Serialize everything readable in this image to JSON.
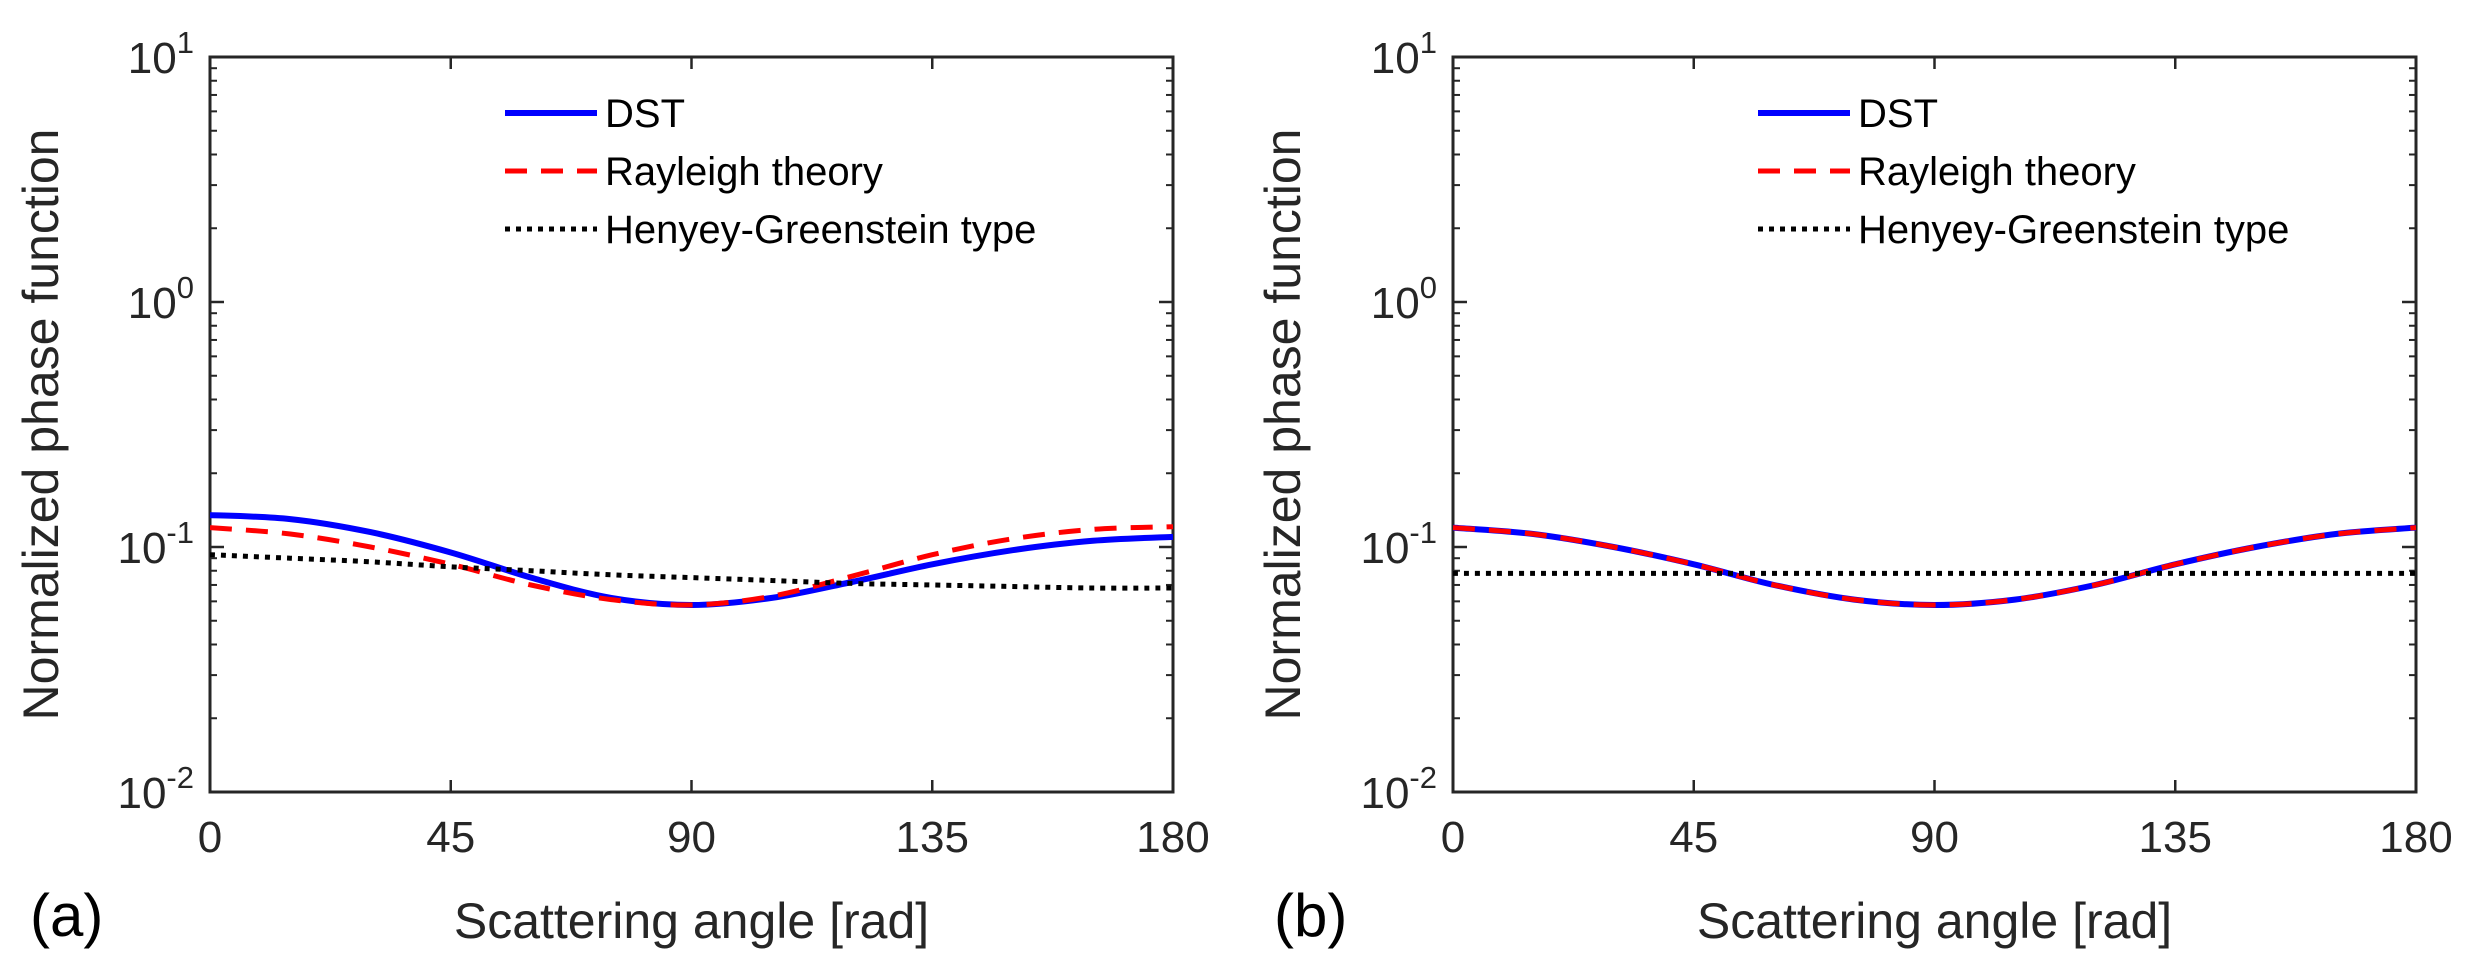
{
  "figure": {
    "panels": [
      {
        "label": "(a)"
      },
      {
        "label": "(b)"
      }
    ]
  },
  "colors": {
    "dst": "#0000ff",
    "rayleigh": "#ff0000",
    "henyey_greenstein": "#000000",
    "axes": "#262626"
  },
  "chart_data": [
    {
      "type": "line",
      "panel_label": "(a)",
      "xlabel": "Scattering angle [rad]",
      "ylabel": "Normalized phase function",
      "xlim": [
        0,
        180
      ],
      "ylim": [
        0.01,
        10
      ],
      "yscale": "log",
      "x_ticks": [
        "0",
        "45",
        "90",
        "135",
        "180"
      ],
      "y_ticks": [
        {
          "base": "10",
          "exp": "-2"
        },
        {
          "base": "10",
          "exp": "-1"
        },
        {
          "base": "10",
          "exp": "0"
        },
        {
          "base": "10",
          "exp": "1"
        }
      ],
      "legend_position": "top-right",
      "x": [
        0,
        15,
        30,
        45,
        60,
        75,
        90,
        105,
        120,
        135,
        150,
        165,
        180
      ],
      "series": [
        {
          "name": "DST",
          "style": "solid",
          "values": [
            0.135,
            0.13,
            0.115,
            0.095,
            0.075,
            0.062,
            0.058,
            0.062,
            0.072,
            0.085,
            0.097,
            0.106,
            0.11
          ]
        },
        {
          "name": "Rayleigh theory",
          "style": "dashed",
          "values": [
            0.12,
            0.113,
            0.1,
            0.085,
            0.07,
            0.061,
            0.058,
            0.063,
            0.076,
            0.093,
            0.108,
            0.118,
            0.121
          ]
        },
        {
          "name": "Henyey-Greenstein type",
          "style": "dotted",
          "values": [
            0.093,
            0.09,
            0.087,
            0.083,
            0.08,
            0.077,
            0.075,
            0.073,
            0.071,
            0.07,
            0.069,
            0.068,
            0.068
          ]
        }
      ]
    },
    {
      "type": "line",
      "panel_label": "(b)",
      "xlabel": "Scattering angle [rad]",
      "ylabel": "Normalized phase function",
      "xlim": [
        0,
        180
      ],
      "ylim": [
        0.01,
        10
      ],
      "yscale": "log",
      "x_ticks": [
        "0",
        "45",
        "90",
        "135",
        "180"
      ],
      "y_ticks": [
        {
          "base": "10",
          "exp": "-2"
        },
        {
          "base": "10",
          "exp": "-1"
        },
        {
          "base": "10",
          "exp": "0"
        },
        {
          "base": "10",
          "exp": "1"
        }
      ],
      "legend_position": "top-right",
      "x": [
        0,
        15,
        30,
        45,
        60,
        75,
        90,
        105,
        120,
        135,
        150,
        165,
        180
      ],
      "series": [
        {
          "name": "DST",
          "style": "solid",
          "values": [
            0.12,
            0.113,
            0.1,
            0.085,
            0.07,
            0.061,
            0.058,
            0.061,
            0.07,
            0.085,
            0.1,
            0.113,
            0.12
          ]
        },
        {
          "name": "Rayleigh theory",
          "style": "dashed",
          "values": [
            0.12,
            0.113,
            0.1,
            0.085,
            0.07,
            0.061,
            0.058,
            0.061,
            0.07,
            0.085,
            0.1,
            0.113,
            0.12
          ]
        },
        {
          "name": "Henyey-Greenstein type",
          "style": "dotted",
          "values": [
            0.078,
            0.078,
            0.078,
            0.078,
            0.078,
            0.078,
            0.078,
            0.078,
            0.078,
            0.078,
            0.078,
            0.078,
            0.078
          ]
        }
      ]
    }
  ]
}
